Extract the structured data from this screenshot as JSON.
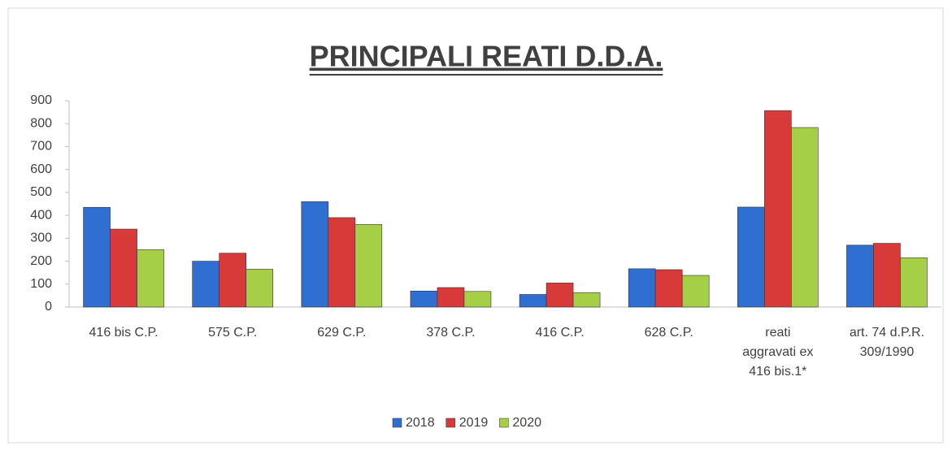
{
  "chart_data": {
    "type": "bar",
    "title": "PRINCIPALI REATI D.D.A.",
    "categories": [
      "416 bis C.P.",
      "575 C.P.",
      "629 C.P.",
      "378 C.P.",
      "416 C.P.",
      "628 C.P.",
      "reati aggravati ex 416 bis.1*",
      "art. 74 d.P.R. 309/1990"
    ],
    "series": [
      {
        "name": "2018",
        "color": "#2f6fd1",
        "values": [
          435,
          200,
          460,
          70,
          55,
          167,
          436,
          270
        ]
      },
      {
        "name": "2019",
        "color": "#d83a3a",
        "values": [
          340,
          235,
          390,
          85,
          105,
          163,
          857,
          278
        ]
      },
      {
        "name": "2020",
        "color": "#a6cf48",
        "values": [
          250,
          165,
          360,
          68,
          63,
          138,
          783,
          215
        ]
      }
    ],
    "ylim": [
      0,
      900
    ],
    "yticks": [
      0,
      100,
      200,
      300,
      400,
      500,
      600,
      700,
      800,
      900
    ],
    "grid": false,
    "legend": "bottom"
  }
}
